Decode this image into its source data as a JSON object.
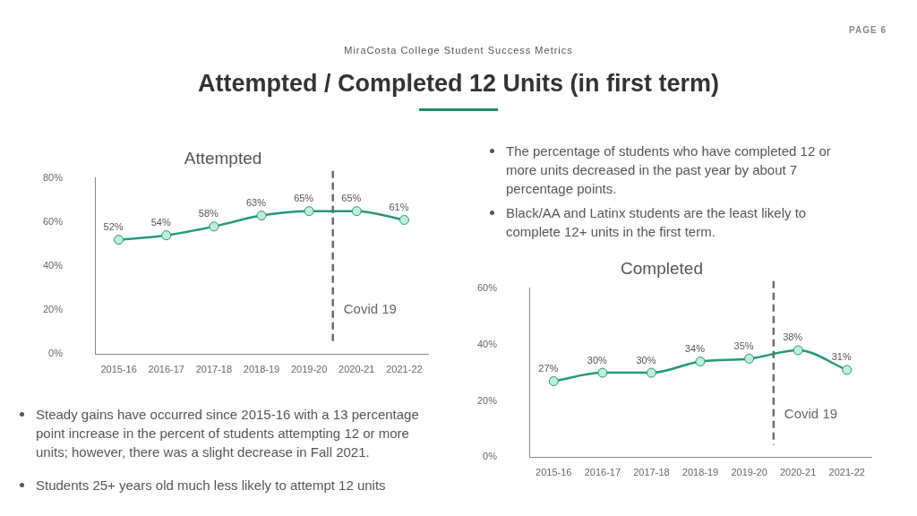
{
  "chart_data": [
    {
      "type": "other",
      "title": "Attempted / Completed 12 Units (in first term)",
      "subtitle": "MiraCosta College Student Success Metrics",
      "annotations": [
        "PAGE 6",
        "The percentage of students who have completed 12 or more units decreased in the past year by about 7 percentage points.",
        "Black/AA and Latinx students are the least likely to complete 12+ units in the first term.",
        "Steady gains have occurred since 2015-16 with a 13 percentage point increase in the percent of students attempting 12 or more units; however, there was a slight decrease in Fall 2021.",
        "Students 25+ years old much less likely to attempt 12 units"
      ]
    },
    {
      "type": "line",
      "title": "Attempted",
      "categories": [
        "2015-16",
        "2016-17",
        "2017-18",
        "2018-19",
        "2019-20",
        "2020-21",
        "2021-22"
      ],
      "series": [
        {
          "color": "#23997a",
          "values": [
            52,
            54,
            58,
            63,
            65,
            65,
            61
          ],
          "value_labels": [
            "52%",
            "54%",
            "58%",
            "63%",
            "65%",
            "65%",
            "61%"
          ]
        }
      ],
      "ylim": [
        0,
        80
      ],
      "yticks": [
        {
          "value": 0,
          "label": "0%"
        },
        {
          "value": 20,
          "label": "20%"
        },
        {
          "value": 40,
          "label": "40%"
        },
        {
          "value": 60,
          "label": "60%"
        },
        {
          "value": 80,
          "label": "80%"
        }
      ],
      "marker": "circle",
      "line_style": "solid",
      "annotations": [
        "Covid 19"
      ]
    },
    {
      "type": "line",
      "title": "Completed",
      "categories": [
        "2015-16",
        "2016-17",
        "2017-18",
        "2018-19",
        "2019-20",
        "2020-21",
        "2021-22"
      ],
      "series": [
        {
          "color": "#23997a",
          "values": [
            27,
            30,
            30,
            34,
            35,
            38,
            31
          ],
          "value_labels": [
            "27%",
            "30%",
            "30%",
            "34%",
            "35%",
            "38%",
            "31%"
          ]
        }
      ],
      "ylim": [
        0,
        60
      ],
      "yticks": [
        {
          "value": 0,
          "label": "0%"
        },
        {
          "value": 20,
          "label": "20%"
        },
        {
          "value": 40,
          "label": "40%"
        },
        {
          "value": 60,
          "label": "60%"
        }
      ],
      "marker": "circle",
      "line_style": "solid",
      "annotations": [
        "Covid 19"
      ]
    }
  ]
}
